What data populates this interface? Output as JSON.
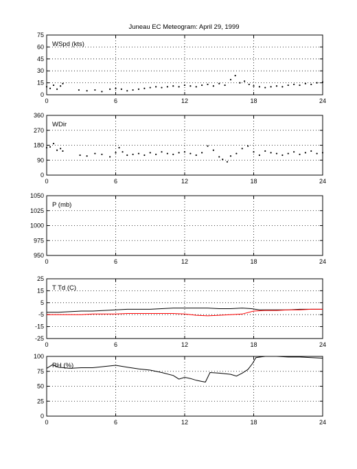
{
  "title": "Juneau EC Meteogram:      April 29, 1999",
  "chart_data": [
    {
      "type": "scatter",
      "label": "WSpd (kts)",
      "xlim": [
        0,
        24
      ],
      "xticks": [
        "0",
        "6",
        "12",
        "18",
        "24"
      ],
      "ylim": [
        0,
        75
      ],
      "yticks": [
        "0",
        "15",
        "30",
        "45",
        "60",
        "75"
      ],
      "grid": true,
      "series": [
        {
          "color": "#000000",
          "x": [
            0,
            0.3,
            0.6,
            0.9,
            1.2,
            1.4,
            2.8,
            3.5,
            4.2,
            4.8,
            5.5,
            6.0,
            6.5,
            7.0,
            7.5,
            8.0,
            8.5,
            9.0,
            9.5,
            10.0,
            10.5,
            11.0,
            11.5,
            12.0,
            12.5,
            13.0,
            13.5,
            14.0,
            14.5,
            15.0,
            15.5,
            16.0,
            16.4,
            16.8,
            17.2,
            17.6,
            18.0,
            18.5,
            19.0,
            19.5,
            20.0,
            20.5,
            21.0,
            21.5,
            22.0,
            22.5,
            23.0,
            23.5,
            24.0
          ],
          "y": [
            10,
            8,
            12,
            7,
            11,
            14,
            6,
            5,
            6,
            4,
            7,
            8,
            7,
            5,
            6,
            7,
            8,
            9,
            10,
            9,
            10,
            11,
            10,
            12,
            11,
            10,
            12,
            13,
            11,
            14,
            12,
            19,
            24,
            15,
            17,
            13,
            11,
            10,
            9,
            10,
            11,
            10,
            12,
            13,
            12,
            14,
            13,
            15,
            16
          ]
        }
      ]
    },
    {
      "type": "scatter",
      "label": "WDir",
      "xlim": [
        0,
        24
      ],
      "xticks": [
        "0",
        "6",
        "12",
        "18",
        "24"
      ],
      "ylim": [
        0,
        360
      ],
      "yticks": [
        "0",
        "90",
        "180",
        "270",
        "360"
      ],
      "grid": true,
      "series": [
        {
          "color": "#000000",
          "x": [
            0,
            0.3,
            0.6,
            0.9,
            1.2,
            1.4,
            2.9,
            3.5,
            4.2,
            4.8,
            5.5,
            6.0,
            6.3,
            6.6,
            7.0,
            7.5,
            8.0,
            8.5,
            9.0,
            9.5,
            10.0,
            10.5,
            11.0,
            11.5,
            12.0,
            12.5,
            13.0,
            13.5,
            14.0,
            14.5,
            15.0,
            15.3,
            15.7,
            16.0,
            16.5,
            17.0,
            17.5,
            18.0,
            18.5,
            19.0,
            19.5,
            20.0,
            20.5,
            21.0,
            21.5,
            22.0,
            22.5,
            23.0,
            23.5,
            24.0
          ],
          "y": [
            165,
            170,
            190,
            150,
            160,
            145,
            120,
            115,
            130,
            125,
            110,
            135,
            165,
            140,
            120,
            125,
            130,
            120,
            135,
            125,
            140,
            130,
            125,
            135,
            140,
            130,
            120,
            135,
            175,
            150,
            110,
            95,
            80,
            115,
            130,
            160,
            175,
            140,
            120,
            145,
            135,
            130,
            120,
            130,
            140,
            125,
            135,
            145,
            130,
            135
          ]
        }
      ]
    },
    {
      "type": "line",
      "label": "P (mb)",
      "xlim": [
        0,
        24
      ],
      "xticks": [
        "0",
        "6",
        "12",
        "18",
        "24"
      ],
      "ylim": [
        950,
        1050
      ],
      "yticks": [
        "950",
        "975",
        "1000",
        "1025",
        "1050"
      ],
      "grid": true,
      "series": []
    },
    {
      "type": "line",
      "label": "T Td (C)",
      "xlim": [
        0,
        24
      ],
      "xticks": [
        "0",
        "6",
        "12",
        "18",
        "24"
      ],
      "ylim": [
        -25,
        25
      ],
      "yticks": [
        "-25",
        "-15",
        "-5",
        "5",
        "15",
        "25"
      ],
      "grid": true,
      "series": [
        {
          "color": "#000000",
          "x": [
            0,
            1,
            2,
            3,
            4,
            5,
            6,
            7,
            8,
            9,
            10,
            11,
            12,
            13,
            14,
            15,
            16,
            17,
            17.8,
            18.5,
            19,
            20,
            21,
            22,
            23,
            24
          ],
          "y": [
            -3,
            -3,
            -2.5,
            -2,
            -2,
            -1.5,
            -1,
            -0.5,
            -0.5,
            -0.5,
            0,
            0.5,
            0.5,
            0.5,
            0.5,
            0,
            0,
            0.5,
            0,
            -1,
            -1,
            -1,
            -1,
            -0.5,
            -0.5,
            -0.5
          ]
        },
        {
          "color": "#ff0000",
          "x": [
            0,
            1,
            2,
            3,
            4,
            5,
            6,
            7,
            8,
            9,
            10,
            11,
            12,
            13,
            14,
            15,
            16,
            17,
            18,
            19,
            20,
            21,
            22,
            23,
            24
          ],
          "y": [
            -5,
            -5,
            -5,
            -5,
            -4.5,
            -4.5,
            -4.5,
            -4,
            -4,
            -4,
            -4,
            -4,
            -4.5,
            -5.5,
            -6,
            -5.5,
            -5,
            -4.5,
            -2,
            -1.5,
            -1.5,
            -1,
            -1,
            -0.5,
            -0.5
          ]
        }
      ]
    },
    {
      "type": "line",
      "label": "RH (%)",
      "xlim": [
        0,
        24
      ],
      "xticks": [
        "0",
        "6",
        "12",
        "18",
        "24"
      ],
      "ylim": [
        0,
        100
      ],
      "yticks": [
        "0",
        "25",
        "50",
        "75",
        "100"
      ],
      "grid": true,
      "series": [
        {
          "color": "#000000",
          "x": [
            0,
            0.5,
            1,
            2,
            3,
            4,
            5,
            6,
            7,
            8,
            9,
            10,
            11,
            11.5,
            12,
            12.5,
            13,
            13.5,
            13.8,
            14.2,
            15,
            16,
            16.5,
            17,
            17.5,
            17.9,
            18.2,
            19,
            20,
            21,
            22,
            23,
            24
          ],
          "y": [
            80,
            86,
            82,
            80,
            81,
            81,
            83,
            85,
            82,
            79,
            77,
            73,
            68,
            62,
            65,
            63,
            60,
            58,
            57,
            73,
            72,
            70,
            67,
            72,
            78,
            88,
            98,
            100,
            100,
            99,
            99,
            98,
            97
          ]
        }
      ]
    }
  ]
}
